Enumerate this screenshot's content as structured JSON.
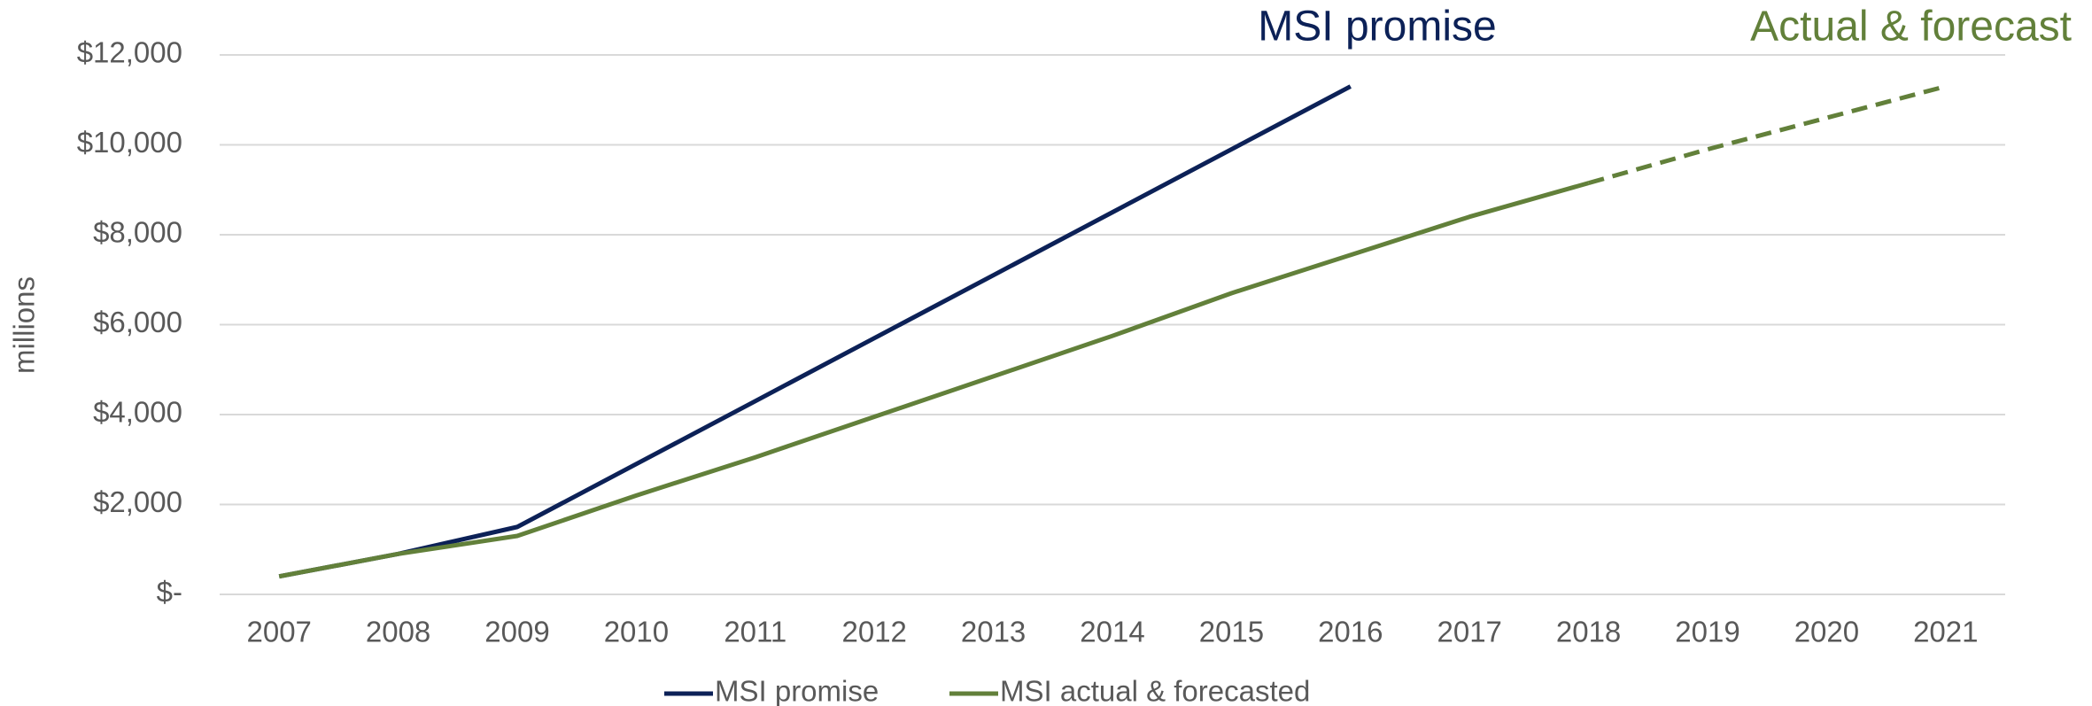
{
  "chart_data": {
    "type": "line",
    "y_label": "millions",
    "annotations": [
      "MSI promise",
      "Actual & forecast"
    ],
    "categories": [
      "2007",
      "2008",
      "2009",
      "2010",
      "2011",
      "2012",
      "2013",
      "2014",
      "2015",
      "2016",
      "2017",
      "2018",
      "2019",
      "2020",
      "2021"
    ],
    "series": [
      {
        "name": "MSI promise",
        "color": "#0c2157",
        "values": [
          400,
          900,
          1500,
          2900,
          4300,
          5700,
          7100,
          8500,
          9900,
          11300,
          null,
          null,
          null,
          null,
          null
        ]
      },
      {
        "name": "MSI actual & forecasted",
        "color": "#62803a",
        "dashed_from": "2018",
        "values": [
          400,
          900,
          1300,
          2200,
          3050,
          3950,
          4850,
          5750,
          6700,
          7550,
          8400,
          9150,
          9900,
          10600,
          11300
        ]
      }
    ],
    "ylim": [
      0,
      12000
    ],
    "yticks": [
      {
        "value": 0,
        "label": "$-"
      },
      {
        "value": 2000,
        "label": "$2,000"
      },
      {
        "value": 4000,
        "label": "$4,000"
      },
      {
        "value": 6000,
        "label": "$6,000"
      },
      {
        "value": 8000,
        "label": "$8,000"
      },
      {
        "value": 10000,
        "label": "$10,000"
      },
      {
        "value": 12000,
        "label": "$12,000"
      }
    ],
    "grid": true
  }
}
